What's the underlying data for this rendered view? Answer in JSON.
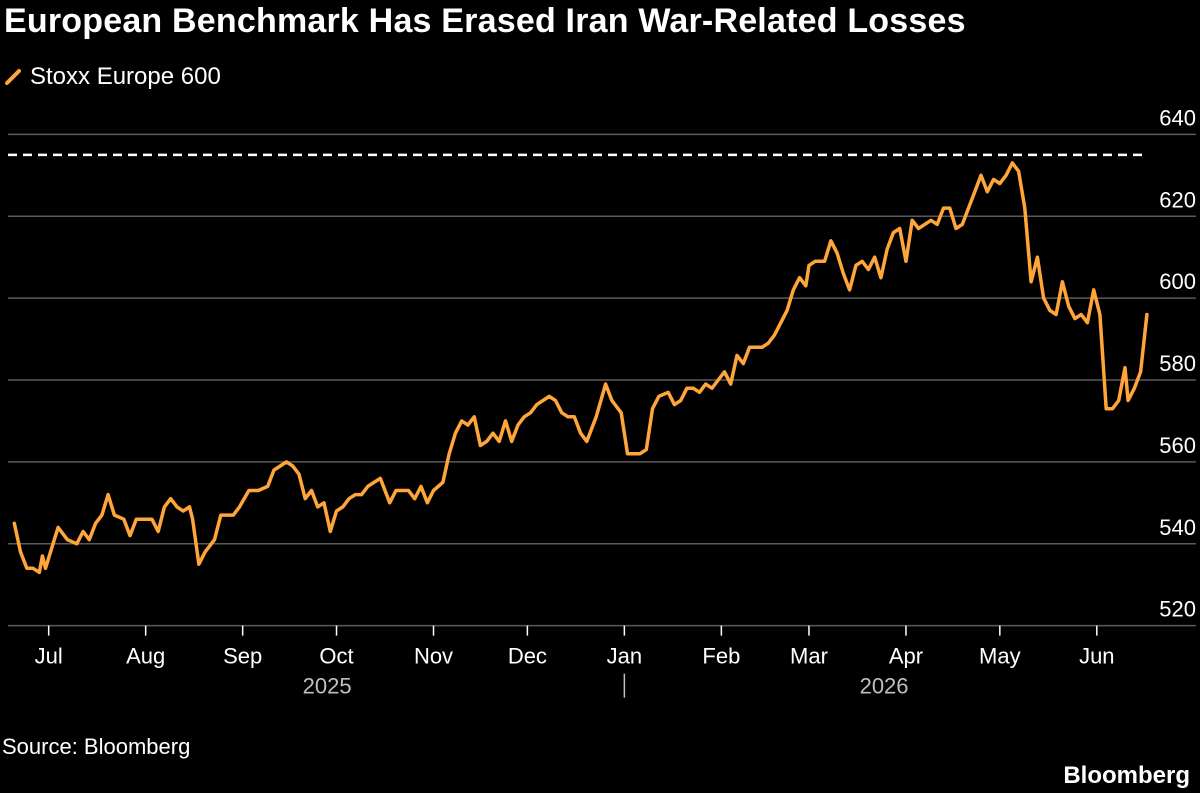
{
  "title": "European Benchmark Has Erased Iran War-Related Losses",
  "source": "Source: Bloomberg",
  "brand": "Bloomberg",
  "colors": {
    "background": "#000000",
    "series": "#FFA53A",
    "grid": "#5a5a5a",
    "reference_line": "#FFFFFF",
    "axis_text": "#FFFFFF",
    "year_text": "#BFBFBF"
  },
  "chart_data": {
    "type": "line",
    "title": "European Benchmark Has Erased Iran War-Related Losses",
    "xlabel": "",
    "ylabel": "",
    "xlim": [
      "2025-06-18",
      "2026-06-18"
    ],
    "ylim": [
      516,
      644
    ],
    "y_ticks": [
      520,
      540,
      560,
      580,
      600,
      620,
      640
    ],
    "y_axis_side": "right",
    "grid": "horizontal",
    "legend_position": "top-left",
    "x_ticks": [
      {
        "date": "2025-07-01",
        "label": "Jul"
      },
      {
        "date": "2025-08-01",
        "label": "Aug"
      },
      {
        "date": "2025-09-01",
        "label": "Sep"
      },
      {
        "date": "2025-10-01",
        "label": "Oct"
      },
      {
        "date": "2025-11-01",
        "label": "Nov"
      },
      {
        "date": "2025-12-01",
        "label": "Dec"
      },
      {
        "date": "2026-01-01",
        "label": "Jan"
      },
      {
        "date": "2026-02-01",
        "label": "Feb"
      },
      {
        "date": "2026-03-01",
        "label": "Mar"
      },
      {
        "date": "2026-04-01",
        "label": "Apr"
      },
      {
        "date": "2026-05-01",
        "label": "May"
      },
      {
        "date": "2026-06-01",
        "label": "Jun"
      }
    ],
    "year_labels": [
      {
        "date": "2025-09-28",
        "label": "2025"
      },
      {
        "date": "2026-03-25",
        "label": "2026"
      }
    ],
    "year_divider_date": "2026-01-01",
    "reference_lines": [
      {
        "y": 635,
        "style": "dashed"
      }
    ],
    "series": [
      {
        "name": "Stoxx Europe 600",
        "color": "#FFA53A",
        "points": [
          [
            "2025-06-20",
            545
          ],
          [
            "2025-06-22",
            538
          ],
          [
            "2025-06-24",
            534
          ],
          [
            "2025-06-26",
            534
          ],
          [
            "2025-06-28",
            533
          ],
          [
            "2025-06-29",
            537
          ],
          [
            "2025-06-30",
            534
          ],
          [
            "2025-07-02",
            539
          ],
          [
            "2025-07-04",
            544
          ],
          [
            "2025-07-07",
            541
          ],
          [
            "2025-07-10",
            540
          ],
          [
            "2025-07-12",
            543
          ],
          [
            "2025-07-14",
            541
          ],
          [
            "2025-07-16",
            545
          ],
          [
            "2025-07-18",
            547
          ],
          [
            "2025-07-20",
            552
          ],
          [
            "2025-07-22",
            547
          ],
          [
            "2025-07-25",
            546
          ],
          [
            "2025-07-27",
            542
          ],
          [
            "2025-07-29",
            546
          ],
          [
            "2025-08-01",
            546
          ],
          [
            "2025-08-03",
            546
          ],
          [
            "2025-08-05",
            543
          ],
          [
            "2025-08-07",
            549
          ],
          [
            "2025-08-09",
            551
          ],
          [
            "2025-08-11",
            549
          ],
          [
            "2025-08-13",
            548
          ],
          [
            "2025-08-15",
            549
          ],
          [
            "2025-08-16",
            546
          ],
          [
            "2025-08-18",
            535
          ],
          [
            "2025-08-20",
            538
          ],
          [
            "2025-08-23",
            541
          ],
          [
            "2025-08-25",
            547
          ],
          [
            "2025-08-27",
            547
          ],
          [
            "2025-08-29",
            547
          ],
          [
            "2025-08-31",
            549
          ],
          [
            "2025-09-03",
            553
          ],
          [
            "2025-09-06",
            553
          ],
          [
            "2025-09-09",
            554
          ],
          [
            "2025-09-11",
            558
          ],
          [
            "2025-09-13",
            559
          ],
          [
            "2025-09-15",
            560
          ],
          [
            "2025-09-17",
            559
          ],
          [
            "2025-09-19",
            557
          ],
          [
            "2025-09-21",
            551
          ],
          [
            "2025-09-23",
            553
          ],
          [
            "2025-09-25",
            549
          ],
          [
            "2025-09-27",
            550
          ],
          [
            "2025-09-29",
            543
          ],
          [
            "2025-10-01",
            548
          ],
          [
            "2025-10-03",
            549
          ],
          [
            "2025-10-05",
            551
          ],
          [
            "2025-10-07",
            552
          ],
          [
            "2025-10-09",
            552
          ],
          [
            "2025-10-11",
            554
          ],
          [
            "2025-10-13",
            555
          ],
          [
            "2025-10-15",
            556
          ],
          [
            "2025-10-18",
            550
          ],
          [
            "2025-10-20",
            553
          ],
          [
            "2025-10-22",
            553
          ],
          [
            "2025-10-24",
            553
          ],
          [
            "2025-10-26",
            551
          ],
          [
            "2025-10-28",
            554
          ],
          [
            "2025-10-30",
            550
          ],
          [
            "2025-11-01",
            553
          ],
          [
            "2025-11-04",
            555
          ],
          [
            "2025-11-06",
            562
          ],
          [
            "2025-11-08",
            567
          ],
          [
            "2025-11-10",
            570
          ],
          [
            "2025-11-12",
            569
          ],
          [
            "2025-11-14",
            571
          ],
          [
            "2025-11-16",
            564
          ],
          [
            "2025-11-18",
            565
          ],
          [
            "2025-11-20",
            567
          ],
          [
            "2025-11-22",
            565
          ],
          [
            "2025-11-24",
            570
          ],
          [
            "2025-11-26",
            565
          ],
          [
            "2025-11-28",
            569
          ],
          [
            "2025-11-30",
            571
          ],
          [
            "2025-12-02",
            572
          ],
          [
            "2025-12-04",
            574
          ],
          [
            "2025-12-06",
            575
          ],
          [
            "2025-12-08",
            576
          ],
          [
            "2025-12-10",
            575
          ],
          [
            "2025-12-12",
            572
          ],
          [
            "2025-12-14",
            571
          ],
          [
            "2025-12-16",
            571
          ],
          [
            "2025-12-18",
            567
          ],
          [
            "2025-12-20",
            565
          ],
          [
            "2025-12-23",
            571
          ],
          [
            "2025-12-26",
            579
          ],
          [
            "2025-12-28",
            575
          ],
          [
            "2025-12-31",
            572
          ],
          [
            "2026-01-02",
            562
          ],
          [
            "2026-01-04",
            562
          ],
          [
            "2026-01-06",
            562
          ],
          [
            "2026-01-08",
            563
          ],
          [
            "2026-01-10",
            573
          ],
          [
            "2026-01-12",
            576
          ],
          [
            "2026-01-15",
            577
          ],
          [
            "2026-01-17",
            574
          ],
          [
            "2026-01-19",
            575
          ],
          [
            "2026-01-21",
            578
          ],
          [
            "2026-01-23",
            578
          ],
          [
            "2026-01-25",
            577
          ],
          [
            "2026-01-27",
            579
          ],
          [
            "2026-01-29",
            578
          ],
          [
            "2026-01-31",
            580
          ],
          [
            "2026-02-02",
            582
          ],
          [
            "2026-02-04",
            579
          ],
          [
            "2026-02-06",
            586
          ],
          [
            "2026-02-08",
            584
          ],
          [
            "2026-02-10",
            588
          ],
          [
            "2026-02-12",
            588
          ],
          [
            "2026-02-14",
            588
          ],
          [
            "2026-02-16",
            589
          ],
          [
            "2026-02-18",
            591
          ],
          [
            "2026-02-20",
            594
          ],
          [
            "2026-02-22",
            597
          ],
          [
            "2026-02-24",
            602
          ],
          [
            "2026-02-26",
            605
          ],
          [
            "2026-02-28",
            603
          ],
          [
            "2026-03-01",
            608
          ],
          [
            "2026-03-03",
            609
          ],
          [
            "2026-03-06",
            609
          ],
          [
            "2026-03-08",
            614
          ],
          [
            "2026-03-10",
            611
          ],
          [
            "2026-03-12",
            606
          ],
          [
            "2026-03-14",
            602
          ],
          [
            "2026-03-16",
            608
          ],
          [
            "2026-03-18",
            609
          ],
          [
            "2026-03-20",
            607
          ],
          [
            "2026-03-22",
            610
          ],
          [
            "2026-03-24",
            605
          ],
          [
            "2026-03-26",
            612
          ],
          [
            "2026-03-28",
            616
          ],
          [
            "2026-03-30",
            617
          ],
          [
            "2026-04-01",
            609
          ],
          [
            "2026-04-03",
            619
          ],
          [
            "2026-04-05",
            617
          ],
          [
            "2026-04-07",
            618
          ],
          [
            "2026-04-09",
            619
          ],
          [
            "2026-04-11",
            618
          ],
          [
            "2026-04-13",
            622
          ],
          [
            "2026-04-15",
            622
          ],
          [
            "2026-04-17",
            617
          ],
          [
            "2026-04-19",
            618
          ],
          [
            "2026-04-21",
            622
          ],
          [
            "2026-04-23",
            626
          ],
          [
            "2026-04-25",
            630
          ],
          [
            "2026-04-27",
            626
          ],
          [
            "2026-04-29",
            629
          ],
          [
            "2026-05-01",
            628
          ],
          [
            "2026-05-03",
            630
          ],
          [
            "2026-05-05",
            633
          ],
          [
            "2026-05-07",
            631
          ],
          [
            "2026-05-09",
            622
          ],
          [
            "2026-05-11",
            604
          ],
          [
            "2026-05-13",
            610
          ],
          [
            "2026-05-15",
            600
          ],
          [
            "2026-05-17",
            597
          ],
          [
            "2026-05-19",
            596
          ],
          [
            "2026-05-21",
            604
          ],
          [
            "2026-05-23",
            598
          ],
          [
            "2026-05-25",
            595
          ],
          [
            "2026-05-27",
            596
          ],
          [
            "2026-05-29",
            594
          ],
          [
            "2026-05-31",
            602
          ],
          [
            "2026-06-02",
            596
          ],
          [
            "2026-06-04",
            573
          ],
          [
            "2026-06-06",
            573
          ],
          [
            "2026-06-08",
            575
          ],
          [
            "2026-06-10",
            583
          ],
          [
            "2026-06-11",
            575
          ],
          [
            "2026-06-13",
            578
          ],
          [
            "2026-06-15",
            582
          ],
          [
            "2026-06-17",
            596
          ]
        ]
      }
    ]
  }
}
